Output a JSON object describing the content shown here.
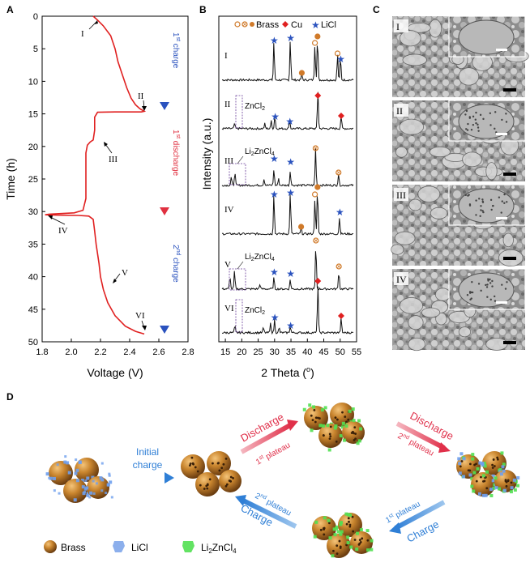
{
  "panel_a": {
    "label": "A",
    "xlabel": "Voltage (V)",
    "ylabel": "Time (h)",
    "xticks": [
      "1.8",
      "2.0",
      "2.2",
      "2.4",
      "2.6",
      "2.8"
    ],
    "yticks": [
      "0",
      "5",
      "10",
      "15",
      "20",
      "25",
      "30",
      "35",
      "40",
      "45",
      "50"
    ],
    "markers": [
      "I",
      "II",
      "III",
      "IV",
      "V",
      "VI"
    ],
    "phase1_main": "1",
    "phase1_sup": "st",
    "phase1_word": " charge",
    "phase2_main": "1",
    "phase2_sup": "st",
    "phase2_word": " discharge",
    "phase3_main": "2",
    "phase3_sup": "nd",
    "phase3_word": " charge",
    "colors": {
      "curve": "#e02020",
      "charge": "#2a52be",
      "discharge": "#e03040"
    }
  },
  "panel_b": {
    "label": "B",
    "xlabel_main": "2 Theta (",
    "xlabel_deg": "o",
    "xlabel_end": ")",
    "ylabel": "Intensity (a.u.)",
    "xticks": [
      "15",
      "20",
      "25",
      "30",
      "35",
      "40",
      "45",
      "50",
      "55"
    ],
    "legend": {
      "brass": "Brass",
      "cu": "Cu",
      "licl": "LiCl"
    },
    "patterns": [
      "I",
      "II",
      "III",
      "IV",
      "V",
      "VI"
    ],
    "annot_zncl2": "ZnCl",
    "annot_zncl2_sub": "2",
    "annot_li2zncl4_a": "Li",
    "annot_li2zncl4_sub1": "2",
    "annot_li2zncl4_b": "ZnCl",
    "annot_li2zncl4_sub2": "4"
  },
  "panel_c": {
    "label": "C",
    "images": [
      "I",
      "II",
      "III",
      "IV"
    ]
  },
  "panel_d": {
    "label": "D",
    "initial_charge_line1": "Initial",
    "initial_charge_line2": "charge",
    "discharge_word": "Discharge",
    "charge_word": "Charge",
    "plateau_1": "1",
    "plateau_1_sup": "st",
    "plateau_2": "2",
    "plateau_2_sup": "nd",
    "plateau_word": " plateau",
    "legend": {
      "brass": "Brass",
      "licl": "LiCl",
      "li2zncl4_a": "Li",
      "li2zncl4_sub1": "2",
      "li2zncl4_b": "ZnCl",
      "li2zncl4_sub2": "4"
    }
  }
}
